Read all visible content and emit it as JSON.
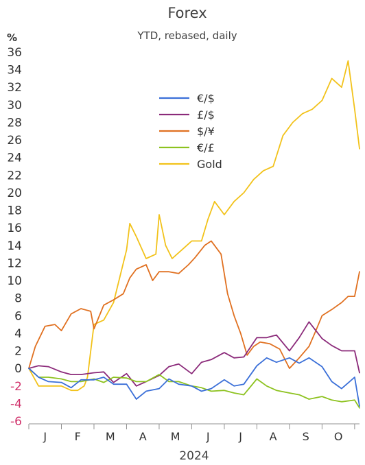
{
  "chart_data": {
    "type": "line",
    "title": "Forex",
    "subtitle": "YTD, rebased, daily",
    "y_unit": "%",
    "xlabel": "2024",
    "ylim": [
      -6,
      36
    ],
    "y_ticks": [
      -6,
      -4,
      -2,
      0,
      2,
      4,
      6,
      8,
      10,
      12,
      14,
      16,
      18,
      20,
      22,
      24,
      26,
      28,
      30,
      32,
      34,
      36
    ],
    "x_ticks": [
      "J",
      "F",
      "M",
      "A",
      "M",
      "J",
      "J",
      "A",
      "S",
      "O"
    ],
    "x_range_months": [
      0,
      10.15
    ],
    "legend_position": "upper-center",
    "grid": false,
    "series": [
      {
        "name": "€/$",
        "color": "#3a6fd8",
        "x": [
          0,
          0.3,
          0.6,
          1.0,
          1.3,
          1.6,
          2.0,
          2.3,
          2.6,
          3.0,
          3.3,
          3.6,
          4.0,
          4.3,
          4.6,
          5.0,
          5.3,
          5.6,
          6.0,
          6.3,
          6.6,
          7.0,
          7.3,
          7.6,
          8.0,
          8.3,
          8.6,
          9.0,
          9.3,
          9.6,
          10.0,
          10.15
        ],
        "values": [
          0,
          -1.0,
          -1.5,
          -1.6,
          -2.2,
          -1.3,
          -1.3,
          -1.0,
          -1.8,
          -1.8,
          -3.5,
          -2.6,
          -2.3,
          -1.2,
          -1.8,
          -2.0,
          -2.6,
          -2.3,
          -1.3,
          -2.0,
          -1.8,
          0.3,
          1.2,
          0.7,
          1.2,
          0.6,
          1.2,
          0.2,
          -1.5,
          -2.3,
          -1.0,
          -4.3
        ]
      },
      {
        "name": "£/$",
        "color": "#8b2a7a",
        "x": [
          0,
          0.3,
          0.6,
          1.0,
          1.3,
          1.6,
          2.0,
          2.3,
          2.6,
          3.0,
          3.3,
          3.6,
          4.0,
          4.3,
          4.6,
          5.0,
          5.3,
          5.6,
          6.0,
          6.3,
          6.6,
          7.0,
          7.3,
          7.6,
          8.0,
          8.3,
          8.6,
          9.0,
          9.3,
          9.6,
          10.0,
          10.15
        ],
        "values": [
          0,
          0.3,
          0.2,
          -0.4,
          -0.7,
          -0.7,
          -0.5,
          -0.4,
          -1.6,
          -0.6,
          -2.0,
          -1.5,
          -0.8,
          0.2,
          0.5,
          -0.6,
          0.7,
          1.0,
          1.8,
          1.2,
          1.3,
          3.5,
          3.5,
          3.8,
          2.0,
          3.5,
          5.3,
          3.4,
          2.6,
          2.0,
          2.0,
          -0.5
        ]
      },
      {
        "name": "$/¥",
        "color": "#e07020",
        "x": [
          0,
          0.2,
          0.5,
          0.8,
          1.0,
          1.3,
          1.6,
          1.9,
          2.0,
          2.3,
          2.6,
          2.9,
          3.1,
          3.3,
          3.6,
          3.8,
          4.0,
          4.3,
          4.6,
          4.9,
          5.1,
          5.4,
          5.6,
          5.9,
          6.1,
          6.3,
          6.5,
          6.7,
          6.9,
          7.1,
          7.4,
          7.7,
          8.0,
          8.3,
          8.6,
          8.8,
          9.0,
          9.3,
          9.6,
          9.8,
          10.0,
          10.15
        ],
        "values": [
          0,
          2.5,
          4.8,
          5.0,
          4.3,
          6.2,
          6.8,
          6.5,
          4.5,
          7.2,
          7.8,
          8.5,
          10.3,
          11.3,
          11.8,
          10.0,
          11.0,
          11.0,
          10.8,
          11.8,
          12.6,
          14.0,
          14.5,
          13.0,
          8.5,
          6.0,
          4.0,
          1.5,
          2.5,
          3.0,
          2.8,
          2.2,
          0.0,
          1.2,
          2.5,
          4.2,
          6.0,
          6.7,
          7.5,
          8.2,
          8.2,
          11.0
        ]
      },
      {
        "name": "€/£",
        "color": "#8dc21f",
        "x": [
          0,
          0.3,
          0.6,
          1.0,
          1.3,
          1.6,
          2.0,
          2.3,
          2.6,
          3.0,
          3.3,
          3.6,
          4.0,
          4.3,
          4.6,
          5.0,
          5.3,
          5.6,
          6.0,
          6.3,
          6.6,
          7.0,
          7.3,
          7.6,
          8.0,
          8.3,
          8.6,
          9.0,
          9.3,
          9.6,
          10.0,
          10.15
        ],
        "values": [
          0,
          -1.0,
          -1.0,
          -1.2,
          -1.5,
          -1.5,
          -1.2,
          -1.6,
          -1.0,
          -1.1,
          -1.5,
          -1.5,
          -0.7,
          -1.5,
          -1.5,
          -2.0,
          -2.2,
          -2.6,
          -2.5,
          -2.8,
          -3.0,
          -1.2,
          -2.0,
          -2.5,
          -2.8,
          -3.0,
          -3.5,
          -3.2,
          -3.6,
          -3.8,
          -3.6,
          -4.5
        ]
      },
      {
        "name": "Gold",
        "color": "#f2c21a",
        "x": [
          0,
          0.3,
          0.6,
          1.0,
          1.3,
          1.5,
          1.7,
          1.8,
          2.0,
          2.3,
          2.6,
          2.8,
          3.0,
          3.1,
          3.3,
          3.6,
          3.9,
          4.0,
          4.2,
          4.4,
          4.7,
          5.0,
          5.3,
          5.5,
          5.7,
          6.0,
          6.3,
          6.6,
          6.9,
          7.2,
          7.5,
          7.8,
          8.1,
          8.4,
          8.7,
          9.0,
          9.3,
          9.6,
          9.8,
          10.0,
          10.15
        ],
        "values": [
          0,
          -2.0,
          -2.0,
          -2.0,
          -2.5,
          -2.5,
          -2.0,
          -1.0,
          5.0,
          5.5,
          7.5,
          10.5,
          13.5,
          16.5,
          15.0,
          12.5,
          13.0,
          17.5,
          14.0,
          12.5,
          13.5,
          14.5,
          14.5,
          17.0,
          19.0,
          17.5,
          19.0,
          20.0,
          21.5,
          22.5,
          23.0,
          26.5,
          28.0,
          29.0,
          29.5,
          30.5,
          33.0,
          32.0,
          35.0,
          29.5,
          25.0
        ]
      }
    ]
  }
}
